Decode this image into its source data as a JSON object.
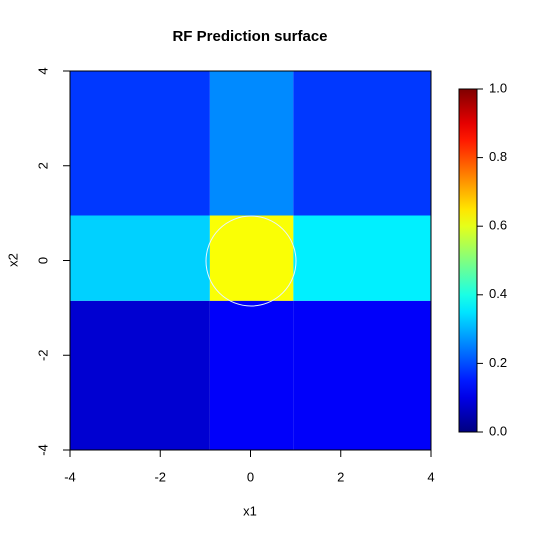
{
  "chart_data": {
    "type": "heatmap",
    "title": "RF Prediction surface",
    "x_label": "x1",
    "y_label": "x2",
    "xbins": [
      -4,
      -0.9,
      0.95,
      4
    ],
    "ybins": [
      -4,
      -0.85,
      0.95,
      4
    ],
    "z": [
      [
        0.08,
        0.12,
        0.12
      ],
      [
        0.33,
        0.62,
        0.36
      ],
      [
        0.18,
        0.26,
        0.18
      ]
    ],
    "xlim": [
      -4,
      4
    ],
    "ylim": [
      -4,
      4
    ],
    "xticks": [
      -4,
      -2,
      0,
      2,
      4
    ],
    "yticks": [
      -4,
      -2,
      0,
      2,
      4
    ],
    "colormap": "jet",
    "zlim": [
      0,
      1
    ],
    "zticks": [
      {
        "value": 0,
        "label": "0.0"
      },
      {
        "value": 0.2,
        "label": "0.2"
      },
      {
        "value": 0.4,
        "label": "0.4"
      },
      {
        "value": 0.6,
        "label": "0.6"
      },
      {
        "value": 0.8,
        "label": "0.8"
      },
      {
        "value": 1,
        "label": "1.0"
      }
    ]
  }
}
